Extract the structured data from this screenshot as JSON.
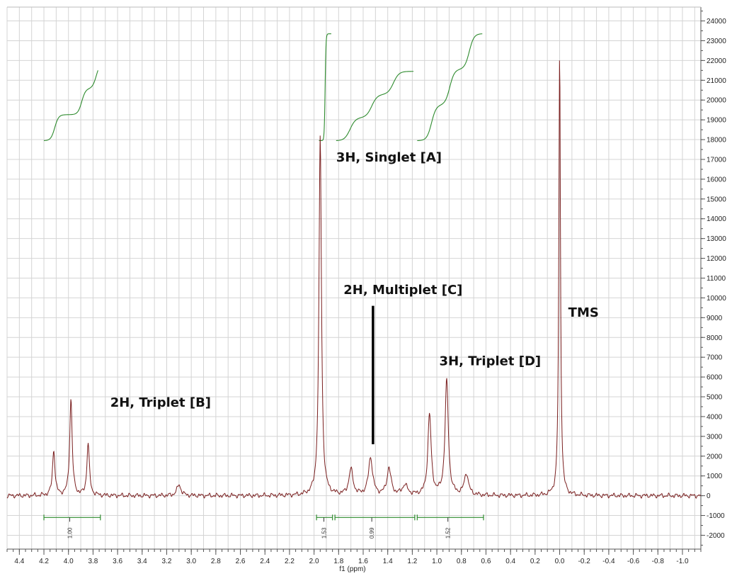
{
  "chart_data": {
    "type": "line",
    "title": "",
    "xlabel": "f1 (ppm)",
    "ylabel": "",
    "xlim": [
      4.5,
      -1.15
    ],
    "x_reversed": true,
    "ylim": [
      -2700,
      24700
    ],
    "grid": true,
    "x_ticks": [
      "4.4",
      "4.2",
      "4.0",
      "3.8",
      "3.6",
      "3.4",
      "3.2",
      "3.0",
      "2.8",
      "2.6",
      "2.4",
      "2.2",
      "2.0",
      "1.8",
      "1.6",
      "1.4",
      "1.2",
      "1.0",
      "0.8",
      "0.6",
      "0.4",
      "0.2",
      "0.0",
      "-0.2",
      "-0.4",
      "-0.6",
      "-0.8",
      "-1.0"
    ],
    "y_ticks": [
      "-2000",
      "-1000",
      "0",
      "1000",
      "2000",
      "3000",
      "4000",
      "5000",
      "6000",
      "7000",
      "8000",
      "9000",
      "10000",
      "11000",
      "12000",
      "13000",
      "14000",
      "15000",
      "16000",
      "17000",
      "18000",
      "19000",
      "20000",
      "21000",
      "22000",
      "23000",
      "24000"
    ],
    "colors": {
      "spectrum": "#7a1f1f",
      "integral": "#2e8b2e",
      "grid": "#d4d4d4",
      "annotation": "#111111"
    },
    "series": [
      {
        "type": "spectrum",
        "peaks": [
          {
            "x": 4.12,
            "y": 2300,
            "w": 0.012
          },
          {
            "x": 3.98,
            "y": 4900,
            "w": 0.012
          },
          {
            "x": 3.84,
            "y": 2650,
            "w": 0.012
          },
          {
            "x": 3.1,
            "y": 550,
            "w": 0.02
          },
          {
            "x": 1.95,
            "y": 18200,
            "w": 0.012
          },
          {
            "x": 1.7,
            "y": 1300,
            "w": 0.02
          },
          {
            "x": 1.54,
            "y": 1900,
            "w": 0.02
          },
          {
            "x": 1.39,
            "y": 1350,
            "w": 0.02
          },
          {
            "x": 1.26,
            "y": 500,
            "w": 0.025
          },
          {
            "x": 1.06,
            "y": 4100,
            "w": 0.016
          },
          {
            "x": 0.92,
            "y": 5800,
            "w": 0.016
          },
          {
            "x": 0.76,
            "y": 1100,
            "w": 0.02
          },
          {
            "x": 0.0,
            "y": 22400,
            "w": 0.008
          }
        ]
      }
    ],
    "integrals": [
      {
        "from": 4.2,
        "to": 3.74,
        "value": "1.00",
        "value_x": 3.99
      },
      {
        "from": 1.98,
        "to": 1.85,
        "value": "1.53",
        "value_x": 1.92
      },
      {
        "from": 1.83,
        "to": 1.18,
        "value": "0.99",
        "value_x": 1.53
      },
      {
        "from": 1.16,
        "to": 0.62,
        "value": "1.52",
        "value_x": 0.91
      }
    ],
    "integral_curves": [
      {
        "from": 4.2,
        "to": 3.76,
        "y_start": 17950,
        "y_end": 21500,
        "steps": [
          0.2,
          0.7,
          0.97
        ]
      },
      {
        "from": 1.96,
        "to": 1.86,
        "y_start": 17950,
        "y_end": 23350,
        "steps": [
          0.5
        ]
      },
      {
        "from": 1.82,
        "to": 1.19,
        "y_start": 17950,
        "y_end": 21450,
        "steps": [
          0.18,
          0.46,
          0.74
        ]
      },
      {
        "from": 1.16,
        "to": 0.63,
        "y_start": 17950,
        "y_end": 23350,
        "steps": [
          0.22,
          0.5,
          0.8
        ]
      }
    ],
    "annotations": [
      {
        "text": "2H, Triplet [B]",
        "x": 3.66,
        "y": 4500
      },
      {
        "text": "3H, Singlet [A]",
        "x": 1.82,
        "y": 16900
      },
      {
        "text": "2H, Multiplet [C]",
        "x": 1.76,
        "y": 10200
      },
      {
        "text": "3H, Triplet [D]",
        "x": 0.98,
        "y": 6600
      },
      {
        "text": "TMS",
        "x": -0.07,
        "y": 9050
      }
    ],
    "marker_line": {
      "x": 1.52,
      "y_from": 2600,
      "y_to": 9600
    }
  }
}
